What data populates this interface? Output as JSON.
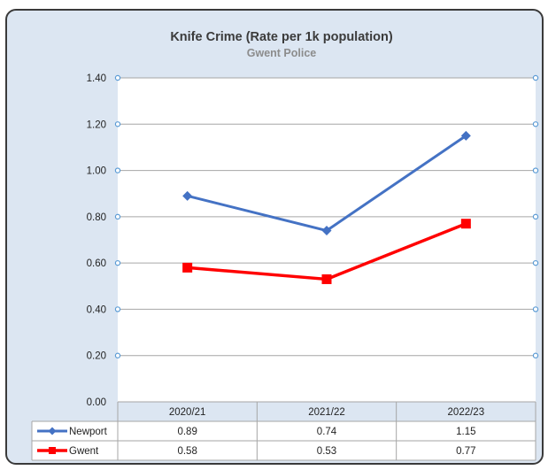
{
  "chart_data": {
    "type": "line",
    "title": "Knife Crime (Rate per 1k population)",
    "subtitle": "Gwent Police",
    "categories": [
      "2020/21",
      "2021/22",
      "2022/23"
    ],
    "series": [
      {
        "name": "Newport",
        "values": [
          0.89,
          0.74,
          1.15
        ],
        "color": "#4472c4",
        "marker": "diamond"
      },
      {
        "name": "Gwent",
        "values": [
          0.58,
          0.53,
          0.77
        ],
        "color": "#ff0000",
        "marker": "square"
      }
    ],
    "ylim": [
      0,
      1.4
    ],
    "yticks": [
      "0.00",
      "0.20",
      "0.40",
      "0.60",
      "0.80",
      "1.00",
      "1.20",
      "1.40"
    ],
    "data_labels": [
      [
        "0.89",
        "0.74",
        "1.15"
      ],
      [
        "0.58",
        "0.53",
        "0.77"
      ]
    ],
    "grid": true,
    "legend": "data-table",
    "colors": {
      "background": "#dce6f2",
      "plot_area": "#ffffff",
      "gridline": "#a6a6a6",
      "axis_marker": "#5b9bd5"
    }
  }
}
